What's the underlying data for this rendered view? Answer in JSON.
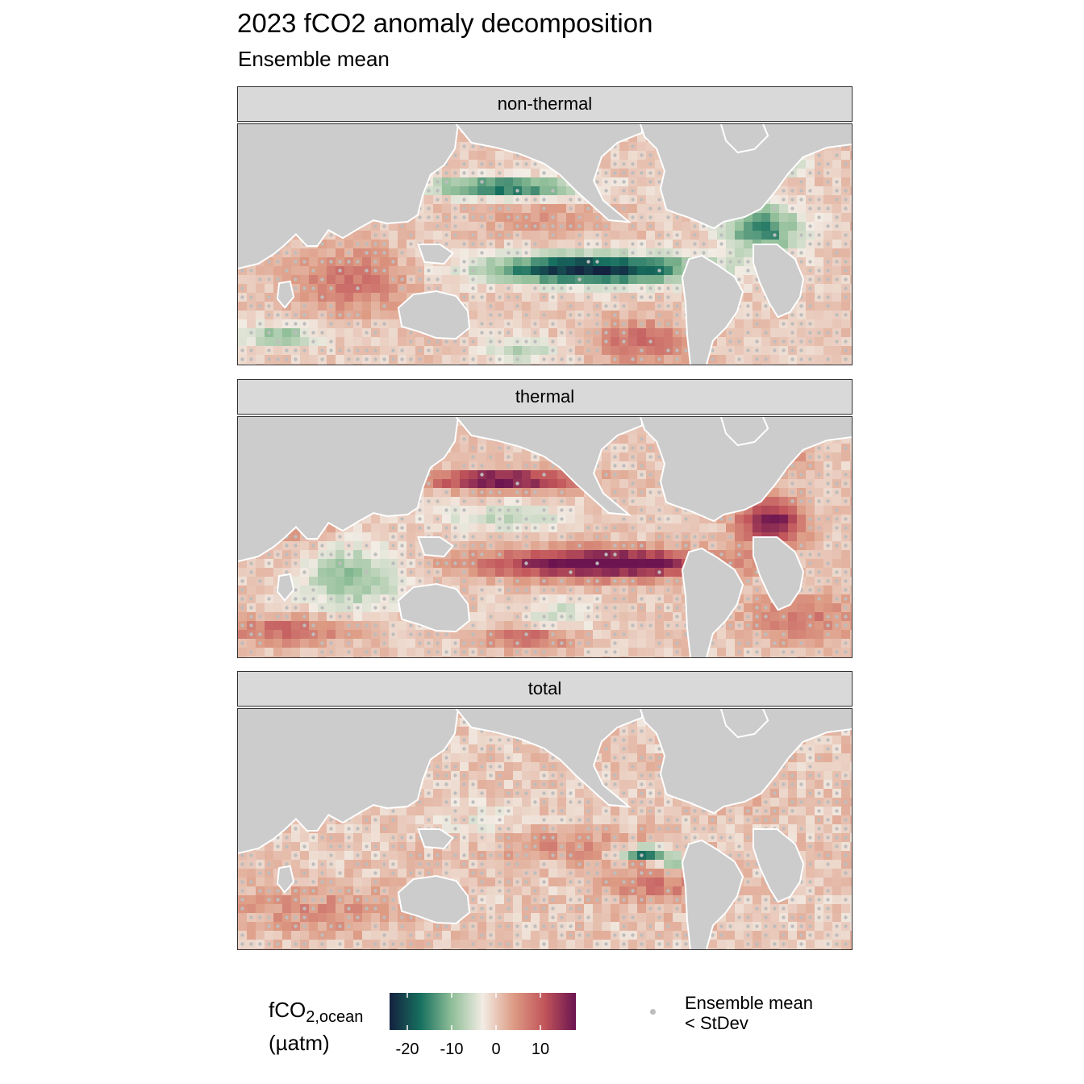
{
  "title": "2023 fCO2 anomaly decomposition",
  "subtitle": "Ensemble mean",
  "chart_data": {
    "type": "heatmap",
    "panels": [
      {
        "label": "non-thermal",
        "pattern": "nonthermal"
      },
      {
        "label": "thermal",
        "pattern": "thermal"
      },
      {
        "label": "total",
        "pattern": "total"
      }
    ],
    "colorbar": {
      "title_main": "fCO",
      "title_sub": "2,ocean",
      "title_unit": "(µatm)",
      "range": [
        -24,
        18
      ],
      "ticks": [
        -20,
        -10,
        0,
        10
      ],
      "tick_labels": [
        "-20",
        "-10",
        "0",
        "10"
      ],
      "colors": [
        "#14213f",
        "#17705f",
        "#8fbe97",
        "#f2ece4",
        "#dd9b84",
        "#c1545a",
        "#6b1450"
      ]
    },
    "stipple_legend": {
      "label_line1": "Ensemble mean",
      "label_line2": "< StDev",
      "dot_color": "#bdbdbd"
    },
    "land_color": "#cccccc"
  }
}
